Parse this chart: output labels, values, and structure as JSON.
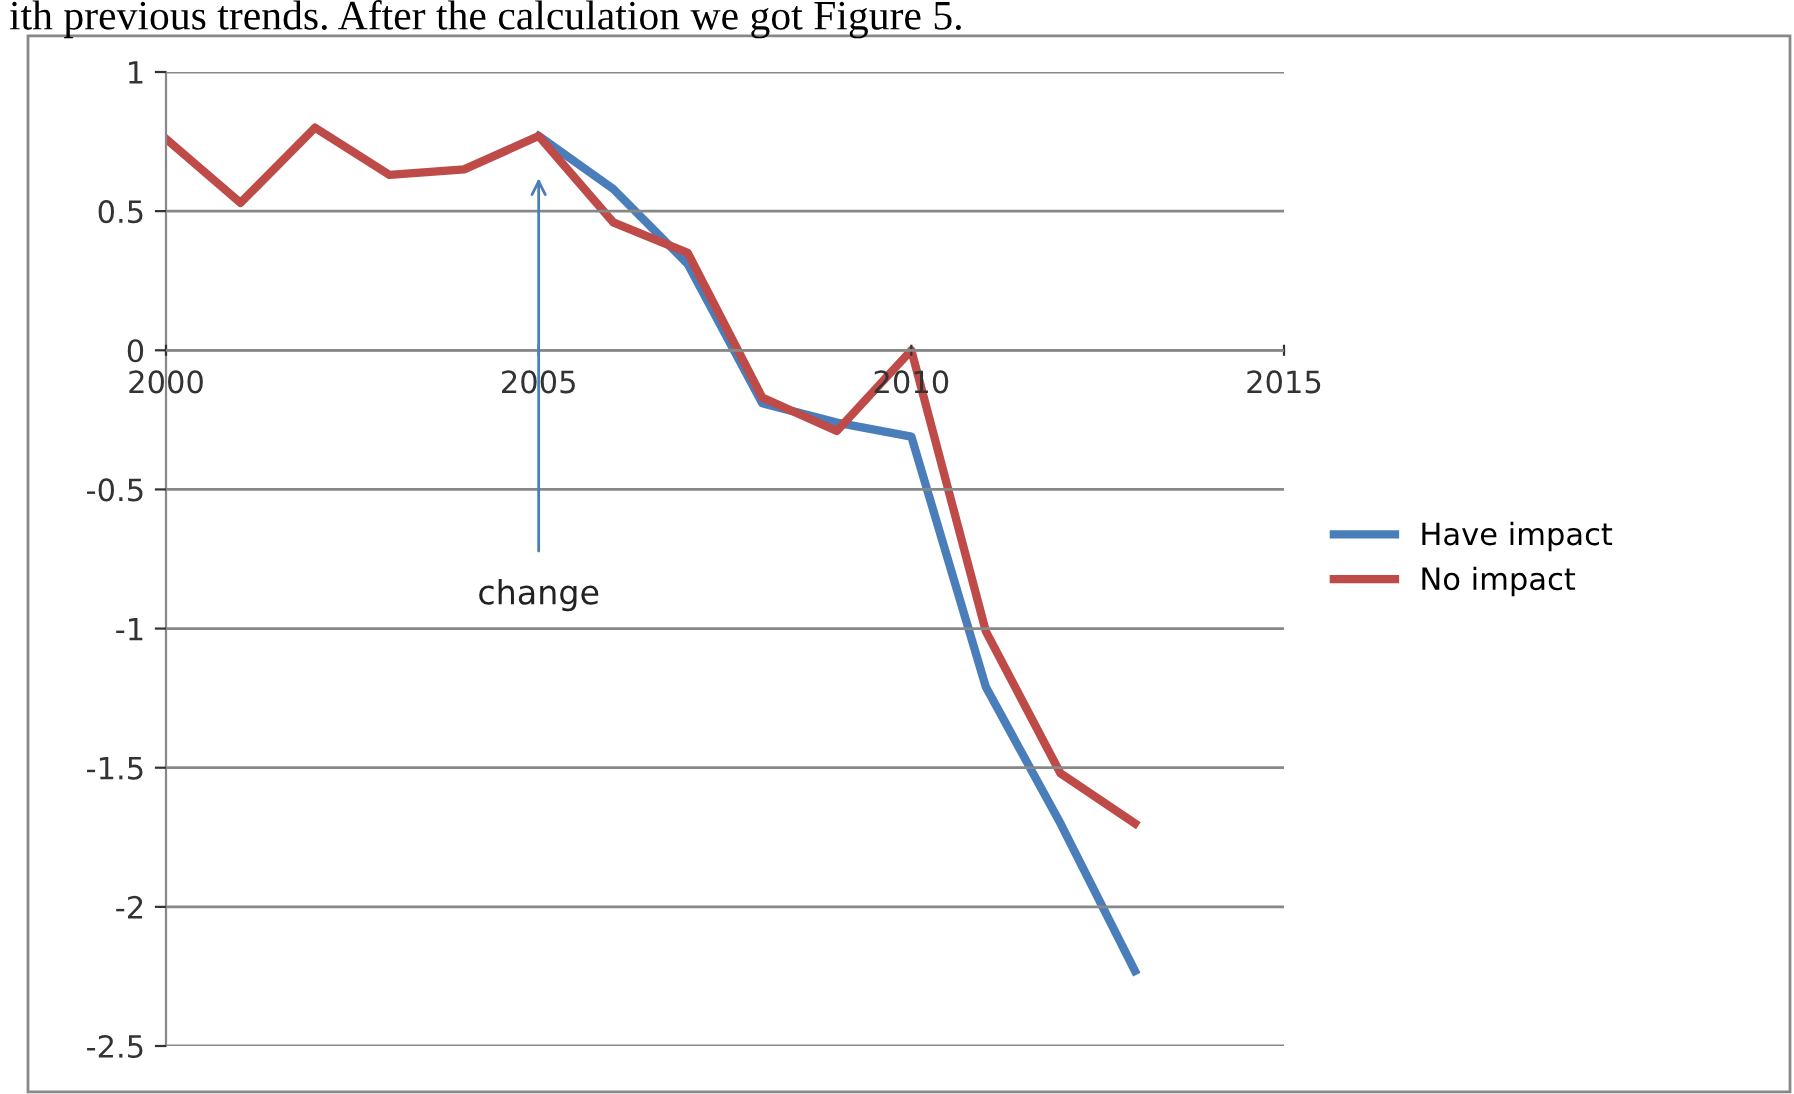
{
  "chart_data": {
    "type": "line",
    "x": [
      2000,
      2001,
      2002,
      2003,
      2004,
      2005,
      2006,
      2007,
      2008,
      2009,
      2010,
      2011,
      2012,
      2013
    ],
    "series": [
      {
        "name": "Have impact",
        "color": "#4a7ebb",
        "values": [
          null,
          null,
          null,
          null,
          null,
          0.77,
          0.58,
          0.31,
          -0.19,
          -0.26,
          -0.31,
          -1.21,
          -1.7,
          -2.23
        ]
      },
      {
        "name": "No impact",
        "color": "#be4b48",
        "values": [
          0.76,
          0.53,
          0.8,
          0.63,
          0.65,
          0.77,
          0.46,
          0.35,
          -0.17,
          -0.29,
          0.0,
          -1.01,
          -1.52,
          -1.7
        ]
      }
    ],
    "xlim": [
      2000,
      2015
    ],
    "xticks": [
      2000,
      2005,
      2010,
      2015
    ],
    "ylim": [
      -2.5,
      1
    ],
    "yticks": [
      -2.5,
      -2,
      -1.5,
      -1,
      -0.5,
      0,
      0.5,
      1
    ],
    "grid": "y",
    "legend": "right",
    "marker": "none",
    "line_style": "solid",
    "annotations": [
      "ith previous trends. After the calculation we got Figure 5.",
      "change"
    ]
  }
}
